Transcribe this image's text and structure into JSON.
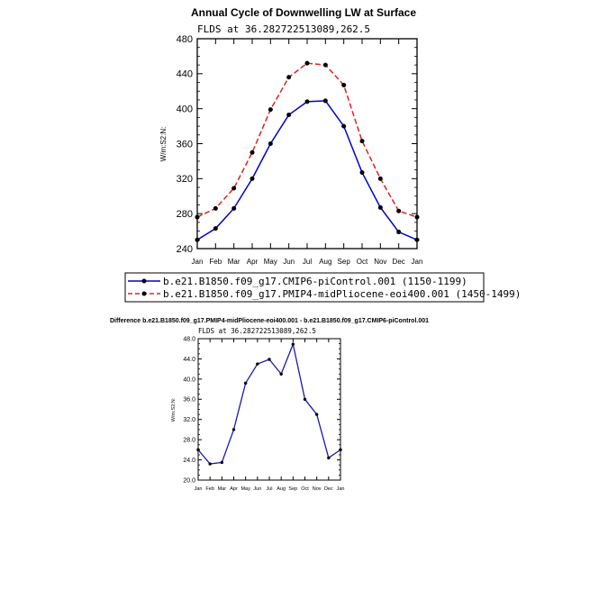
{
  "chart_data": [
    {
      "type": "line",
      "title": "Annual Cycle of Downwelling LW at Surface",
      "subtitle": "FLDS at 36.282722513089,262.5",
      "ylabel": "W/m:S2:N:",
      "xlabel": "",
      "categories": [
        "Jan",
        "Feb",
        "Mar",
        "Apr",
        "May",
        "Jun",
        "Jul",
        "Aug",
        "Sep",
        "Oct",
        "Nov",
        "Dec",
        "Jan"
      ],
      "ylim": [
        240,
        480
      ],
      "yticks": [
        "240",
        "280",
        "320",
        "360",
        "400",
        "440",
        "480"
      ],
      "legend_position": "below",
      "series": [
        {
          "name": "b.e21.B1850.f09_g17.CMIP6-piControl.001 (1150-1199)",
          "color": "#0000cc",
          "dash": "solid",
          "values": [
            250,
            263,
            286,
            320,
            360,
            393,
            408,
            409,
            380,
            327,
            287,
            259,
            250
          ]
        },
        {
          "name": "b.e21.B1850.f09_g17.PMIP4-midPliocene-eoi400.001 (1450-1499)",
          "color": "#dd2222",
          "dash": "dashed",
          "values": [
            276,
            286,
            309,
            350,
            399,
            436,
            452,
            450,
            427,
            363,
            320,
            283,
            276
          ]
        }
      ]
    },
    {
      "type": "line",
      "title": "Difference b.e21.B1850.f09_g17.PMIP4-midPliocene-eoi400.001 - b.e21.B1850.f09_g17.CMIP6-piControl.001",
      "subtitle": "FLDS at 36.282722513089,262.5",
      "ylabel": "W/m:S2:N:",
      "xlabel": "",
      "categories": [
        "Jan",
        "Feb",
        "Mar",
        "Apr",
        "May",
        "Jun",
        "Jul",
        "Aug",
        "Sep",
        "Oct",
        "Nov",
        "Dec",
        "Jan"
      ],
      "ylim": [
        20,
        48
      ],
      "yticks": [
        "20.0",
        "24.0",
        "28.0",
        "32.0",
        "36.0",
        "40.0",
        "44.0",
        "48.0"
      ],
      "series": [
        {
          "name": "Difference",
          "color": "#1a1aaa",
          "dash": "solid",
          "values": [
            26.0,
            23.2,
            23.5,
            30.0,
            39.2,
            43.0,
            43.9,
            41.0,
            46.9,
            36.0,
            33.0,
            24.4,
            26.0
          ]
        }
      ]
    }
  ]
}
